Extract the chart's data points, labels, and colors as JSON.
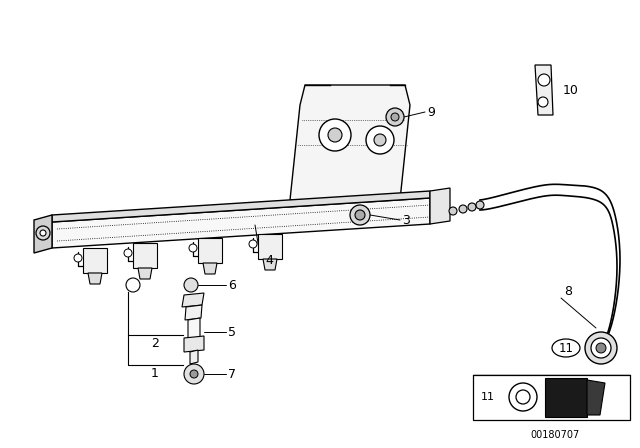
{
  "bg_color": "#ffffff",
  "line_color": "#000000",
  "fig_width": 6.4,
  "fig_height": 4.48,
  "dpi": 100,
  "diagram_id": "00180707"
}
